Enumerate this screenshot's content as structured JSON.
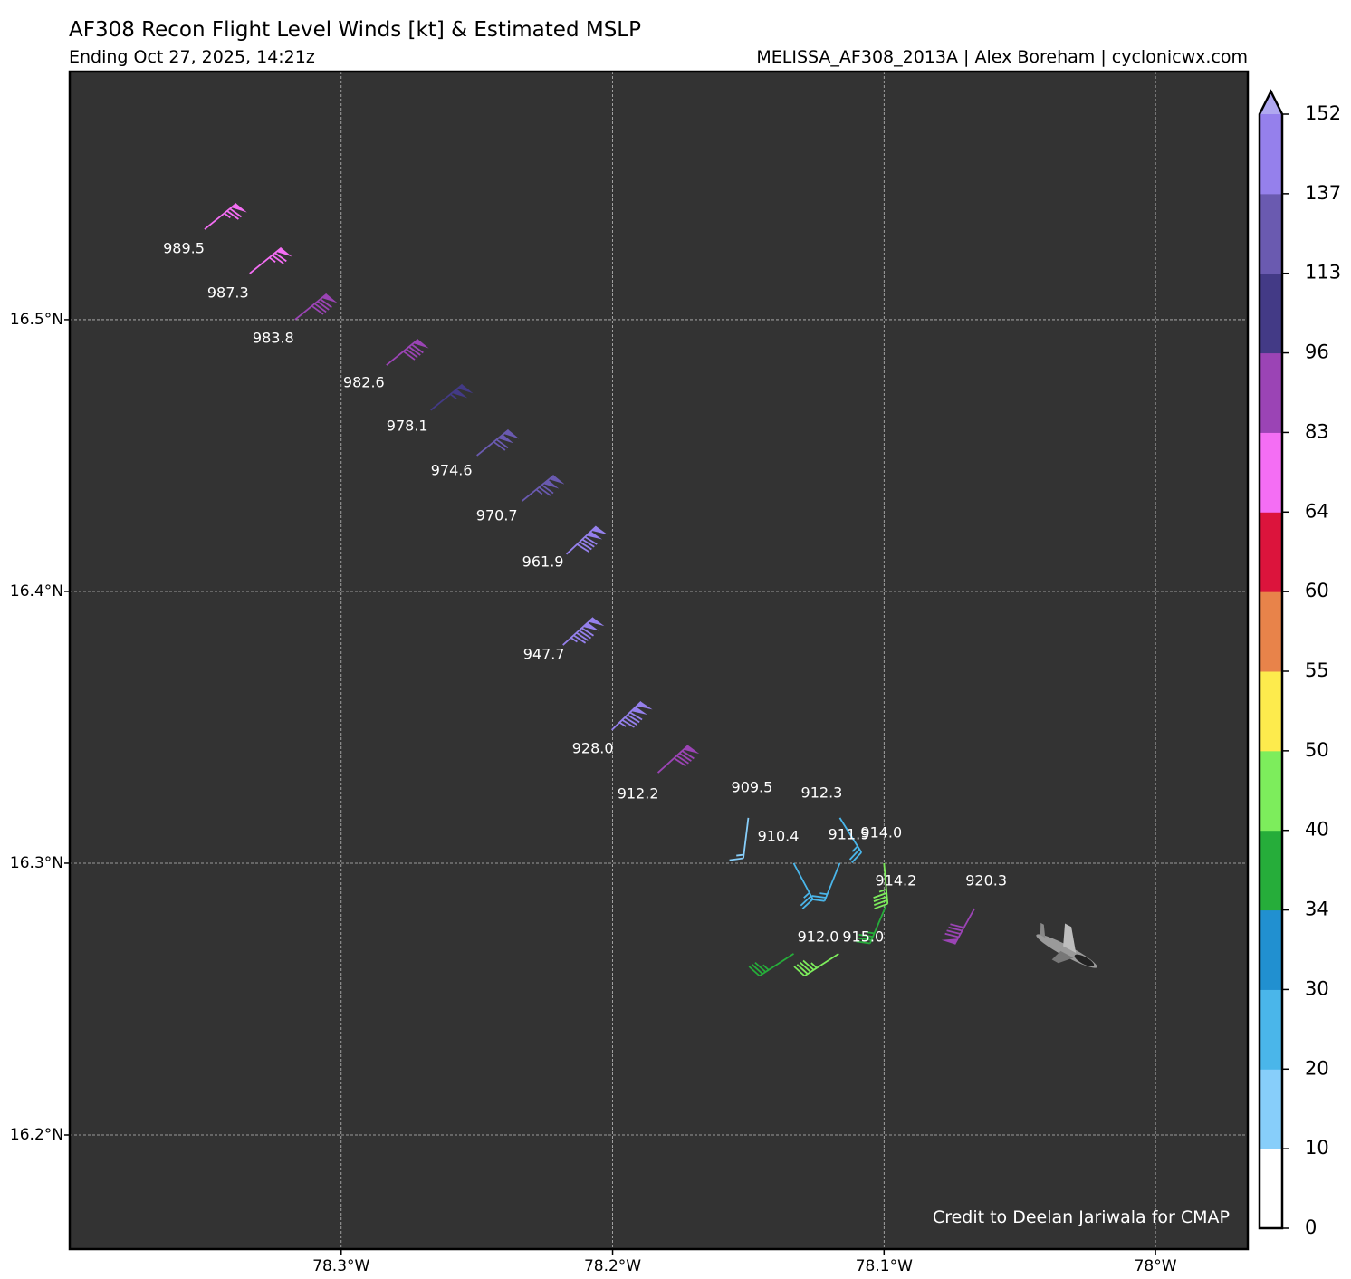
{
  "chart_data": {
    "type": "barbs",
    "title": "AF308 Recon Flight Level Winds [kt] & Estimated MSLP",
    "subtitle": "Ending Oct 27, 2025, 14:21z",
    "source": "MELISSA_AF308_2013A | Alex Boreham | cyclonicwx.com",
    "credit": "Credit to Deelan Jariwala for CMAP",
    "xlim": [
      -78.4,
      -77.966
    ],
    "ylim": [
      16.158,
      16.5913
    ],
    "xticks": [
      {
        "value": -78.3,
        "label": "78.3°W"
      },
      {
        "value": -78.2,
        "label": "78.2°W"
      },
      {
        "value": -78.1,
        "label": "78.1°W"
      },
      {
        "value": -78.0,
        "label": "78°W"
      }
    ],
    "yticks": [
      {
        "value": 16.2,
        "label": "16.2°N"
      },
      {
        "value": 16.3,
        "label": "16.3°N"
      },
      {
        "value": 16.4,
        "label": "16.4°N"
      },
      {
        "value": 16.5,
        "label": "16.5°N"
      }
    ],
    "grid": true,
    "observations": [
      {
        "lon": -78.3503,
        "lat": 16.5333,
        "speed": 75,
        "direction": 51,
        "pressure": "989.5"
      },
      {
        "lon": -78.3337,
        "lat": 16.517,
        "speed": 75,
        "direction": 51,
        "pressure": "987.3"
      },
      {
        "lon": -78.317,
        "lat": 16.5,
        "speed": 90,
        "direction": 51,
        "pressure": "983.8"
      },
      {
        "lon": -78.2833,
        "lat": 16.4833,
        "speed": 90,
        "direction": 51,
        "pressure": "982.6"
      },
      {
        "lon": -78.267,
        "lat": 16.4667,
        "speed": 105,
        "direction": 51,
        "pressure": "978.1"
      },
      {
        "lon": -78.25,
        "lat": 16.45,
        "speed": 120,
        "direction": 51,
        "pressure": "974.6"
      },
      {
        "lon": -78.2333,
        "lat": 16.4333,
        "speed": 125,
        "direction": 51,
        "pressure": "970.7"
      },
      {
        "lon": -78.217,
        "lat": 16.4137,
        "speed": 140,
        "direction": 47,
        "pressure": "961.9"
      },
      {
        "lon": -78.2183,
        "lat": 16.3803,
        "speed": 145,
        "direction": 48,
        "pressure": "947.7"
      },
      {
        "lon": -78.2003,
        "lat": 16.349,
        "speed": 145,
        "direction": 46,
        "pressure": "928.0"
      },
      {
        "lon": -78.1833,
        "lat": 16.3333,
        "speed": 90,
        "direction": 48,
        "pressure": "912.2"
      },
      {
        "lon": -78.15,
        "lat": 16.3167,
        "speed": 15,
        "direction": 187,
        "pressure": "909.5"
      },
      {
        "lon": -78.1333,
        "lat": 16.3,
        "speed": 25,
        "direction": 152,
        "pressure": "910.4"
      },
      {
        "lon": -78.1163,
        "lat": 16.3167,
        "speed": 25,
        "direction": 148,
        "pressure": "912.3"
      },
      {
        "lon": -78.1163,
        "lat": 16.3,
        "speed": 25,
        "direction": 202,
        "pressure": "911.9"
      },
      {
        "lon": -78.1,
        "lat": 16.3,
        "speed": 45,
        "direction": 175,
        "pressure": "914.0"
      },
      {
        "lon": -78.0993,
        "lat": 16.2843,
        "speed": 37,
        "direction": 203,
        "pressure": "914.2"
      },
      {
        "lon": -78.0667,
        "lat": 16.2833,
        "speed": 90,
        "direction": 209,
        "pressure": "920.3"
      },
      {
        "lon": -78.1333,
        "lat": 16.2667,
        "speed": 37,
        "direction": 237,
        "pressure": "912.0"
      },
      {
        "lon": -78.1167,
        "lat": 16.2667,
        "speed": 45,
        "direction": 237,
        "pressure": "915.0"
      }
    ],
    "colorbar": {
      "levels": [
        0,
        10,
        20,
        30,
        34,
        40,
        50,
        55,
        60,
        64,
        83,
        96,
        113,
        137,
        152
      ],
      "colors": [
        "#ffffff",
        "#87cefa",
        "#4ab6ea",
        "#2190d0",
        "#26ad3a",
        "#7ded5c",
        "#fdeb4d",
        "#e8834a",
        "#dc143c",
        "#f46ef4",
        "#9b44b5",
        "#433a86",
        "#6a5ab0",
        "#9580ec"
      ],
      "extend_color": "#b0a8f0"
    }
  }
}
